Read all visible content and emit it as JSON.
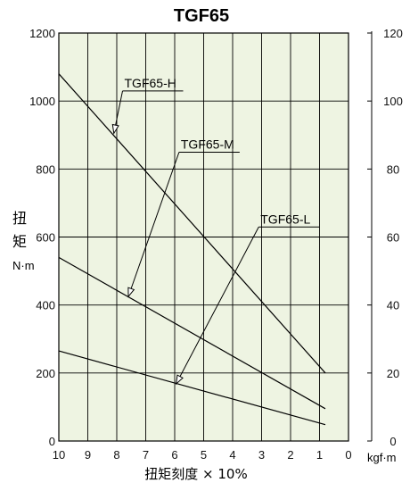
{
  "chart_data": {
    "type": "line",
    "title": "TGF65",
    "ylabel_chars": [
      "扭",
      "矩"
    ],
    "ylabel_unit": "N·m",
    "y2label": "kgf·m",
    "xlabel": "扭矩刻度 × 10%",
    "xlim": [
      10,
      0
    ],
    "ylim": [
      0,
      1200
    ],
    "y2lim": [
      0,
      120
    ],
    "x_ticks": [
      "10",
      "9",
      "8",
      "7",
      "6",
      "5",
      "4",
      "3",
      "2",
      "1",
      "0"
    ],
    "y_ticks": [
      "0",
      "200",
      "400",
      "600",
      "800",
      "1000",
      "1200"
    ],
    "y2_ticks": [
      "0",
      "20",
      "40",
      "60",
      "80",
      "100",
      "120"
    ],
    "grid": true,
    "background": "#eef4e2",
    "line_color": "#000000",
    "series": [
      {
        "name": "TGF65-H",
        "x": [
          10,
          0.8
        ],
        "y": [
          1080,
          200
        ],
        "callout": {
          "point_x": 8.1,
          "point_y": 905,
          "label_x": 7.8,
          "label_y": 1040
        }
      },
      {
        "name": "TGF65-M",
        "x": [
          10,
          0.8
        ],
        "y": [
          540,
          95
        ],
        "callout": {
          "point_x": 7.6,
          "point_y": 425,
          "label_x": 5.85,
          "label_y": 860
        }
      },
      {
        "name": "TGF65-L",
        "x": [
          10,
          0.8
        ],
        "y": [
          265,
          48
        ],
        "callout": {
          "point_x": 5.95,
          "point_y": 168,
          "label_x": 3.1,
          "label_y": 640
        }
      }
    ]
  }
}
